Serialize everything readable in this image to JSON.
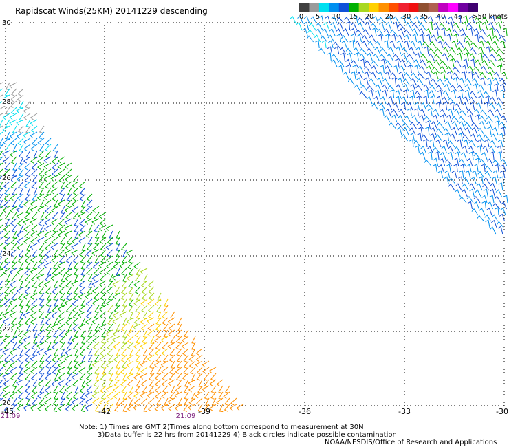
{
  "title": "Rapidscat Winds(25KM) 20141229 descending",
  "legend": {
    "labels": [
      "0",
      "5",
      "10",
      "15",
      "20",
      "25",
      "30",
      "35",
      "40",
      "45",
      ">50 knots"
    ],
    "colors": [
      "#404040",
      "#9a9a9a",
      "#00e0f0",
      "#0090f0",
      "#1050d8",
      "#00b000",
      "#a8d820",
      "#ffd000",
      "#ff9000",
      "#ff5000",
      "#f02030",
      "#f01010",
      "#905030",
      "#b06050",
      "#c000c0",
      "#ff00ff",
      "#7000a0",
      "#400070"
    ]
  },
  "map": {
    "lat_labels": [
      "30",
      "28",
      "26",
      "24",
      "22",
      "20"
    ],
    "lon_labels": [
      "-45",
      "-42",
      "-39",
      "-36",
      "-33",
      "-30"
    ],
    "time_labels": [
      "21:09",
      "21:09"
    ]
  },
  "notes": {
    "line1": "Note: 1) Times are GMT 2)Times along bottom correspond to measurement at 30N",
    "line2": "3)Data buffer is 22 hrs from 20141229 4) Black circles indicate possible contamination",
    "credit": "NOAA/NESDIS/Office of Research and Applications"
  }
}
